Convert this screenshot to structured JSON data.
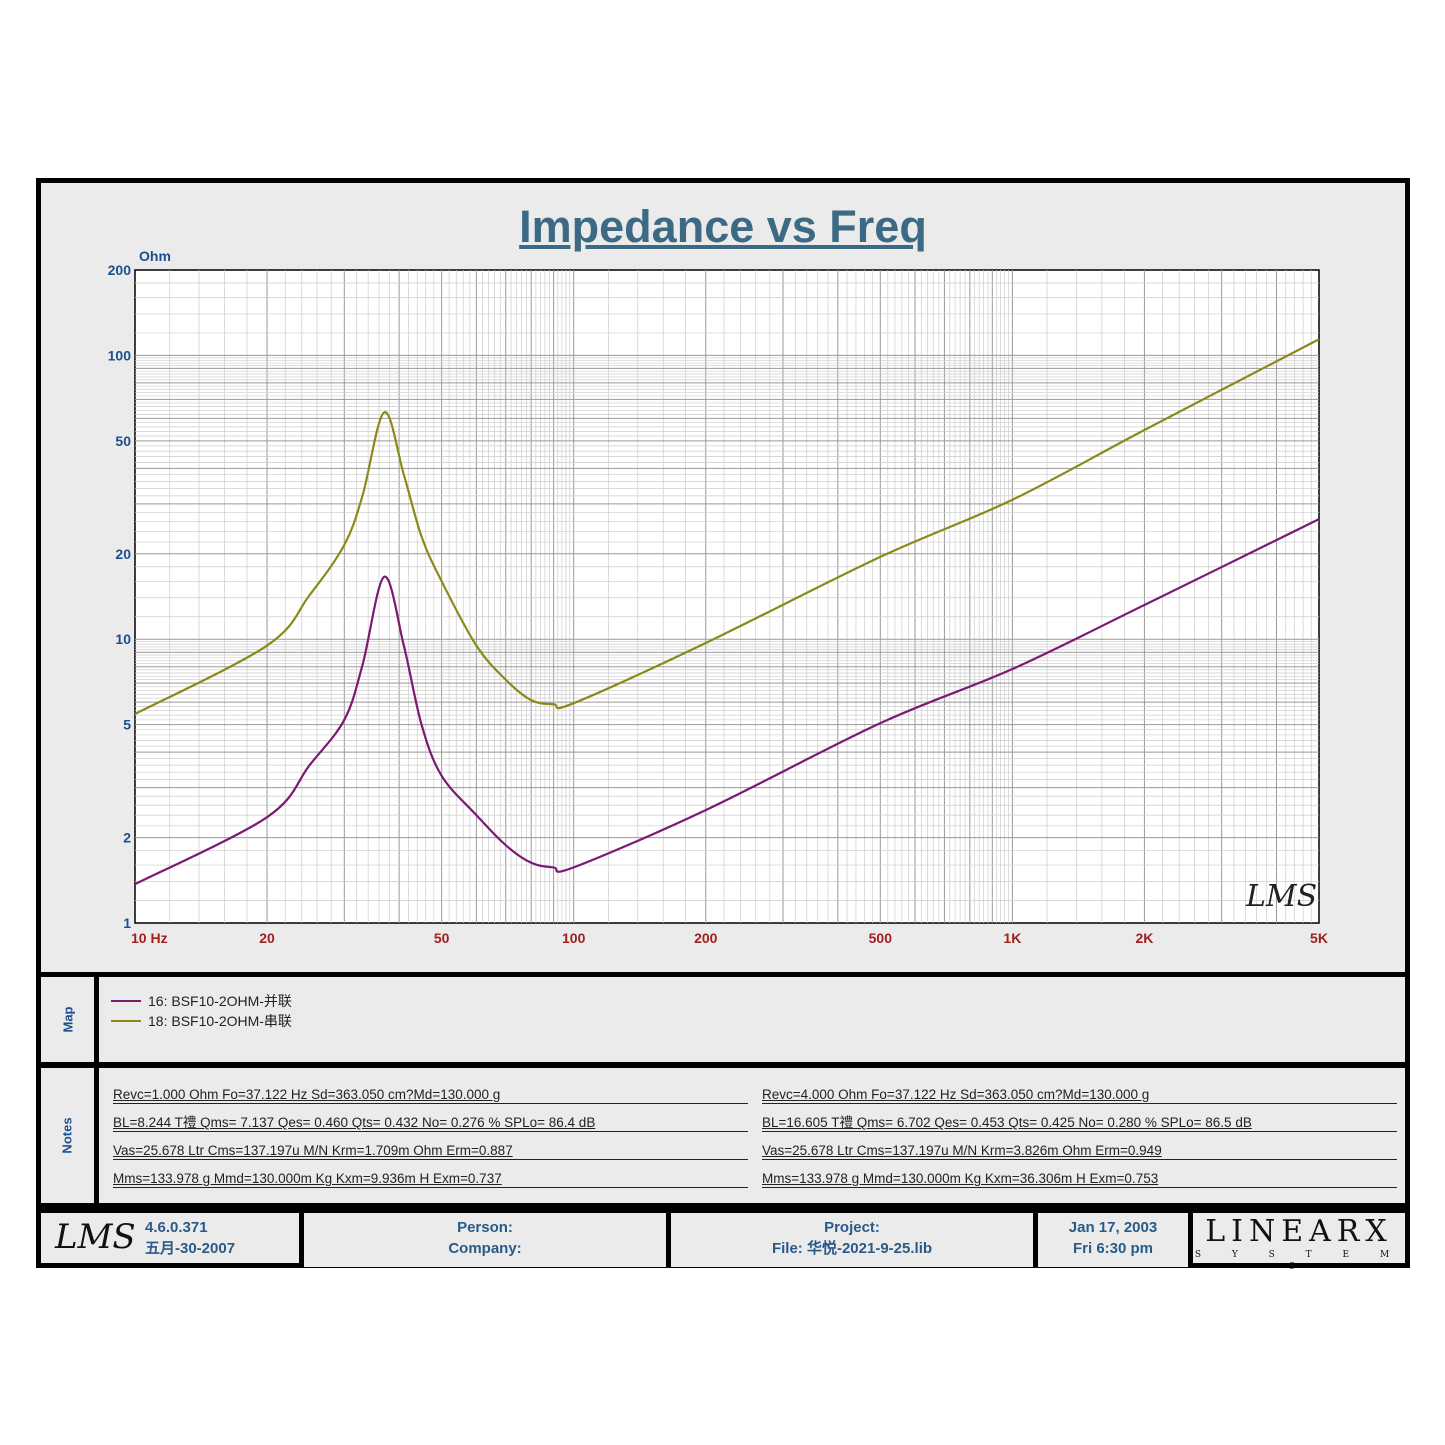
{
  "chart_data": {
    "type": "line",
    "title": "Impedance vs Freq",
    "ylabel": "Ohm",
    "xlabel": "Hz",
    "xscale": "log",
    "yscale": "log",
    "xlim": [
      10,
      5000
    ],
    "ylim": [
      1,
      200
    ],
    "x_ticks": [
      {
        "v": 10,
        "label": "10  Hz"
      },
      {
        "v": 20,
        "label": "20"
      },
      {
        "v": 50,
        "label": "50"
      },
      {
        "v": 100,
        "label": "100"
      },
      {
        "v": 200,
        "label": "200"
      },
      {
        "v": 500,
        "label": "500"
      },
      {
        "v": 1000,
        "label": "1K"
      },
      {
        "v": 2000,
        "label": "2K"
      },
      {
        "v": 5000,
        "label": "5K"
      }
    ],
    "y_ticks": [
      {
        "v": 1,
        "label": "1"
      },
      {
        "v": 2,
        "label": "2"
      },
      {
        "v": 5,
        "label": "5"
      },
      {
        "v": 10,
        "label": "10"
      },
      {
        "v": 20,
        "label": "20"
      },
      {
        "v": 50,
        "label": "50"
      },
      {
        "v": 100,
        "label": "100"
      },
      {
        "v": 200,
        "label": "200"
      }
    ],
    "grid": true,
    "series": [
      {
        "name": "16: BSF10-2OHM-并联",
        "color": "#7b1a72",
        "x": [
          10,
          20,
          25,
          30,
          33,
          37,
          41,
          45,
          50,
          60,
          70,
          80,
          90,
          100,
          200,
          500,
          1000,
          2000,
          5000
        ],
        "y": [
          1.37,
          2.36,
          3.6,
          5.2,
          8.1,
          16.6,
          9.5,
          5.0,
          3.3,
          2.4,
          1.88,
          1.63,
          1.57,
          1.57,
          2.5,
          5.06,
          7.85,
          13.2,
          26.5
        ]
      },
      {
        "name": "18: BSF10-2OHM-串联",
        "color": "#8a8a1a",
        "x": [
          10,
          20,
          25,
          30,
          33,
          37,
          41,
          45,
          50,
          60,
          70,
          80,
          90,
          100,
          200,
          500,
          1000,
          2000,
          5000
        ],
        "y": [
          5.45,
          9.5,
          14.3,
          21.5,
          32,
          63,
          38,
          23,
          16,
          9.5,
          7.2,
          6.1,
          5.9,
          5.95,
          9.7,
          19.5,
          31,
          54.6,
          114
        ]
      }
    ]
  },
  "watermark": "LMS",
  "map": {
    "label": "Map",
    "items": [
      "16: BSF10-2OHM-并联",
      "18: BSF10-2OHM-串联"
    ]
  },
  "notes": {
    "label": "Notes",
    "left": [
      "Revc=1.000 Ohm  Fo=37.122 Hz  Sd=363.050 cm?Md=130.000 g",
      "BL=8.244 T禮  Qms= 7.137  Qes= 0.460  Qts= 0.432  No= 0.276 %  SPLo= 86.4 dB",
      "Vas=25.678 Ltr  Cms=137.197u M/N  Krm=1.709m Ohm  Erm=0.887",
      "Mms=133.978 g  Mmd=130.000m Kg  Kxm=9.936m H  Exm=0.737"
    ],
    "right": [
      "Revc=4.000 Ohm  Fo=37.122 Hz  Sd=363.050 cm?Md=130.000 g",
      "BL=16.605 T禮  Qms= 6.702  Qes= 0.453  Qts= 0.425  No= 0.280 %  SPLo= 86.5 dB",
      "Vas=25.678 Ltr  Cms=137.197u M/N  Krm=3.826m Ohm  Erm=0.949",
      "Mms=133.978 g  Mmd=130.000m Kg  Kxm=36.306m H  Exm=0.753"
    ]
  },
  "footer": {
    "logo": "LMS",
    "version": "4.6.0.371",
    "build_date": "五月-30-2007",
    "person": "Person:",
    "company": "Company:",
    "project": "Project:",
    "file": "File: 华悦-2021-9-25.lib",
    "date": "Jan 17, 2003",
    "time": "Fri  6:30 pm",
    "brand": "LINEARX",
    "brand_sub": "S Y S T E M S"
  }
}
